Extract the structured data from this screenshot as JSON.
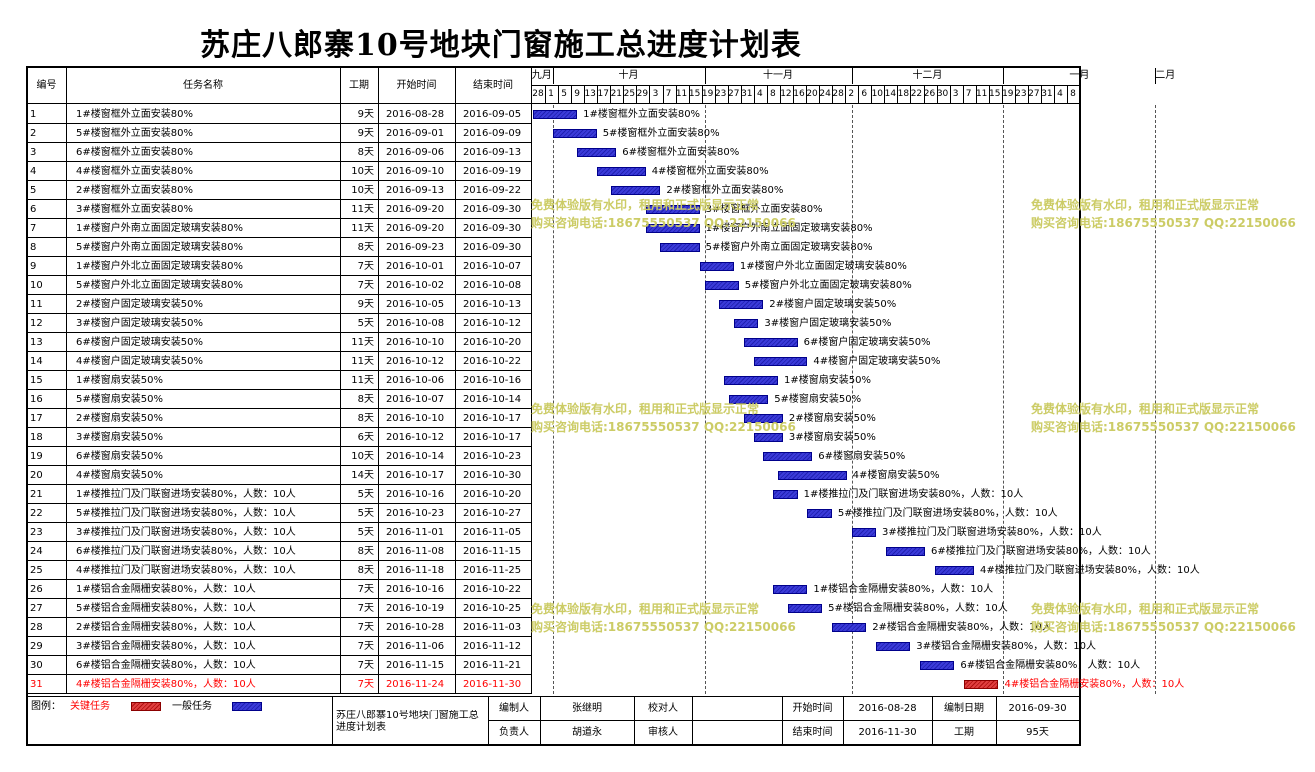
{
  "title": "苏庄八郎寨10号地块门窗施工总进度计划表",
  "headers": {
    "id": "编号",
    "name": "任务名称",
    "duration": "工期",
    "start": "开始时间",
    "end": "结束时间"
  },
  "months": [
    "九月",
    "十月",
    "十一月",
    "十二月",
    "一月",
    "二月"
  ],
  "day_ticks": [
    "28",
    "1",
    "5",
    "9",
    "13",
    "17",
    "21",
    "25",
    "29",
    "3",
    "7",
    "11",
    "15",
    "19",
    "23",
    "27",
    "31",
    "4",
    "8",
    "12",
    "16",
    "20",
    "24",
    "28",
    "2",
    "6",
    "10",
    "14",
    "18",
    "22",
    "26",
    "30",
    "3",
    "7",
    "11",
    "15",
    "19",
    "23",
    "27",
    "31",
    "4",
    "8"
  ],
  "tasks": [
    {
      "id": "1",
      "name": "1#楼窗框外立面安装80%",
      "dur": "9天",
      "start": "2016-08-28",
      "end": "2016-09-05",
      "critical": false
    },
    {
      "id": "2",
      "name": "5#楼窗框外立面安装80%",
      "dur": "9天",
      "start": "2016-09-01",
      "end": "2016-09-09",
      "critical": false
    },
    {
      "id": "3",
      "name": "6#楼窗框外立面安装80%",
      "dur": "8天",
      "start": "2016-09-06",
      "end": "2016-09-13",
      "critical": false
    },
    {
      "id": "4",
      "name": "4#楼窗框外立面安装80%",
      "dur": "10天",
      "start": "2016-09-10",
      "end": "2016-09-19",
      "critical": false
    },
    {
      "id": "5",
      "name": "2#楼窗框外立面安装80%",
      "dur": "10天",
      "start": "2016-09-13",
      "end": "2016-09-22",
      "critical": false
    },
    {
      "id": "6",
      "name": "3#楼窗框外立面安装80%",
      "dur": "11天",
      "start": "2016-09-20",
      "end": "2016-09-30",
      "critical": false
    },
    {
      "id": "7",
      "name": "1#楼窗户外南立面固定玻璃安装80%",
      "dur": "11天",
      "start": "2016-09-20",
      "end": "2016-09-30",
      "critical": false
    },
    {
      "id": "8",
      "name": "5#楼窗户外南立面固定玻璃安装80%",
      "dur": "8天",
      "start": "2016-09-23",
      "end": "2016-09-30",
      "critical": false
    },
    {
      "id": "9",
      "name": "1#楼窗户外北立面固定玻璃安装80%",
      "dur": "7天",
      "start": "2016-10-01",
      "end": "2016-10-07",
      "critical": false
    },
    {
      "id": "10",
      "name": "5#楼窗户外北立面固定玻璃安装80%",
      "dur": "7天",
      "start": "2016-10-02",
      "end": "2016-10-08",
      "critical": false
    },
    {
      "id": "11",
      "name": "2#楼窗户固定玻璃安装50%",
      "dur": "9天",
      "start": "2016-10-05",
      "end": "2016-10-13",
      "critical": false
    },
    {
      "id": "12",
      "name": "3#楼窗户固定玻璃安装50%",
      "dur": "5天",
      "start": "2016-10-08",
      "end": "2016-10-12",
      "critical": false
    },
    {
      "id": "13",
      "name": "6#楼窗户固定玻璃安装50%",
      "dur": "11天",
      "start": "2016-10-10",
      "end": "2016-10-20",
      "critical": false
    },
    {
      "id": "14",
      "name": "4#楼窗户固定玻璃安装50%",
      "dur": "11天",
      "start": "2016-10-12",
      "end": "2016-10-22",
      "critical": false
    },
    {
      "id": "15",
      "name": "1#楼窗扇安装50%",
      "dur": "11天",
      "start": "2016-10-06",
      "end": "2016-10-16",
      "critical": false
    },
    {
      "id": "16",
      "name": "5#楼窗扇安装50%",
      "dur": "8天",
      "start": "2016-10-07",
      "end": "2016-10-14",
      "critical": false
    },
    {
      "id": "17",
      "name": "2#楼窗扇安装50%",
      "dur": "8天",
      "start": "2016-10-10",
      "end": "2016-10-17",
      "critical": false
    },
    {
      "id": "18",
      "name": "3#楼窗扇安装50%",
      "dur": "6天",
      "start": "2016-10-12",
      "end": "2016-10-17",
      "critical": false
    },
    {
      "id": "19",
      "name": "6#楼窗扇安装50%",
      "dur": "10天",
      "start": "2016-10-14",
      "end": "2016-10-23",
      "critical": false
    },
    {
      "id": "20",
      "name": "4#楼窗扇安装50%",
      "dur": "14天",
      "start": "2016-10-17",
      "end": "2016-10-30",
      "critical": false
    },
    {
      "id": "21",
      "name": "1#楼推拉门及门联窗进场安装80%，人数：10人",
      "dur": "5天",
      "start": "2016-10-16",
      "end": "2016-10-20",
      "critical": false
    },
    {
      "id": "22",
      "name": "5#楼推拉门及门联窗进场安装80%，人数：10人",
      "dur": "5天",
      "start": "2016-10-23",
      "end": "2016-10-27",
      "critical": false
    },
    {
      "id": "23",
      "name": "3#楼推拉门及门联窗进场安装80%，人数：10人",
      "dur": "5天",
      "start": "2016-11-01",
      "end": "2016-11-05",
      "critical": false
    },
    {
      "id": "24",
      "name": "6#楼推拉门及门联窗进场安装80%，人数：10人",
      "dur": "8天",
      "start": "2016-11-08",
      "end": "2016-11-15",
      "critical": false
    },
    {
      "id": "25",
      "name": "4#楼推拉门及门联窗进场安装80%，人数：10人",
      "dur": "8天",
      "start": "2016-11-18",
      "end": "2016-11-25",
      "critical": false
    },
    {
      "id": "26",
      "name": "1#楼铝合金隔栅安装80%，人数：10人",
      "dur": "7天",
      "start": "2016-10-16",
      "end": "2016-10-22",
      "critical": false
    },
    {
      "id": "27",
      "name": "5#楼铝合金隔栅安装80%，人数：10人",
      "dur": "7天",
      "start": "2016-10-19",
      "end": "2016-10-25",
      "critical": false
    },
    {
      "id": "28",
      "name": "2#楼铝合金隔栅安装80%，人数：10人",
      "dur": "7天",
      "start": "2016-10-28",
      "end": "2016-11-03",
      "critical": false
    },
    {
      "id": "29",
      "name": "3#楼铝合金隔栅安装80%，人数：10人",
      "dur": "7天",
      "start": "2016-11-06",
      "end": "2016-11-12",
      "critical": false
    },
    {
      "id": "30",
      "name": "6#楼铝合金隔栅安装80%，人数：10人",
      "dur": "7天",
      "start": "2016-11-15",
      "end": "2016-11-21",
      "critical": false
    },
    {
      "id": "31",
      "name": "4#楼铝合金隔栅安装80%，人数：10人",
      "dur": "7天",
      "start": "2016-11-24",
      "end": "2016-11-30",
      "critical": true
    }
  ],
  "footer": {
    "legend_label": "图例：",
    "critical_label": "关键任务",
    "normal_label": "一般任务",
    "plan_name": "苏庄八郎寨10号地块门窗施工总进度计划表",
    "compiler_label": "编制人",
    "compiler": "张继明",
    "checker_label": "校对人",
    "checker": "",
    "start_label": "开始时间",
    "start": "2016-08-28",
    "date_label": "编制日期",
    "date": "2016-09-30",
    "owner_label": "负责人",
    "owner": "胡道永",
    "reviewer_label": "审核人",
    "reviewer": "",
    "end_label": "结束时间",
    "end": "2016-11-30",
    "duration_label": "工期",
    "duration": "95天"
  },
  "watermark": {
    "line1": "免费体验版有水印，租用和正式版显示正常",
    "line2": "购买咨询电话:18675550537 QQ:22150066"
  },
  "colors": {
    "normal_bar": "#2a2ac0",
    "critical_bar": "#d02020",
    "critical_text": "#ff0000",
    "watermark": "#cccc66"
  }
}
